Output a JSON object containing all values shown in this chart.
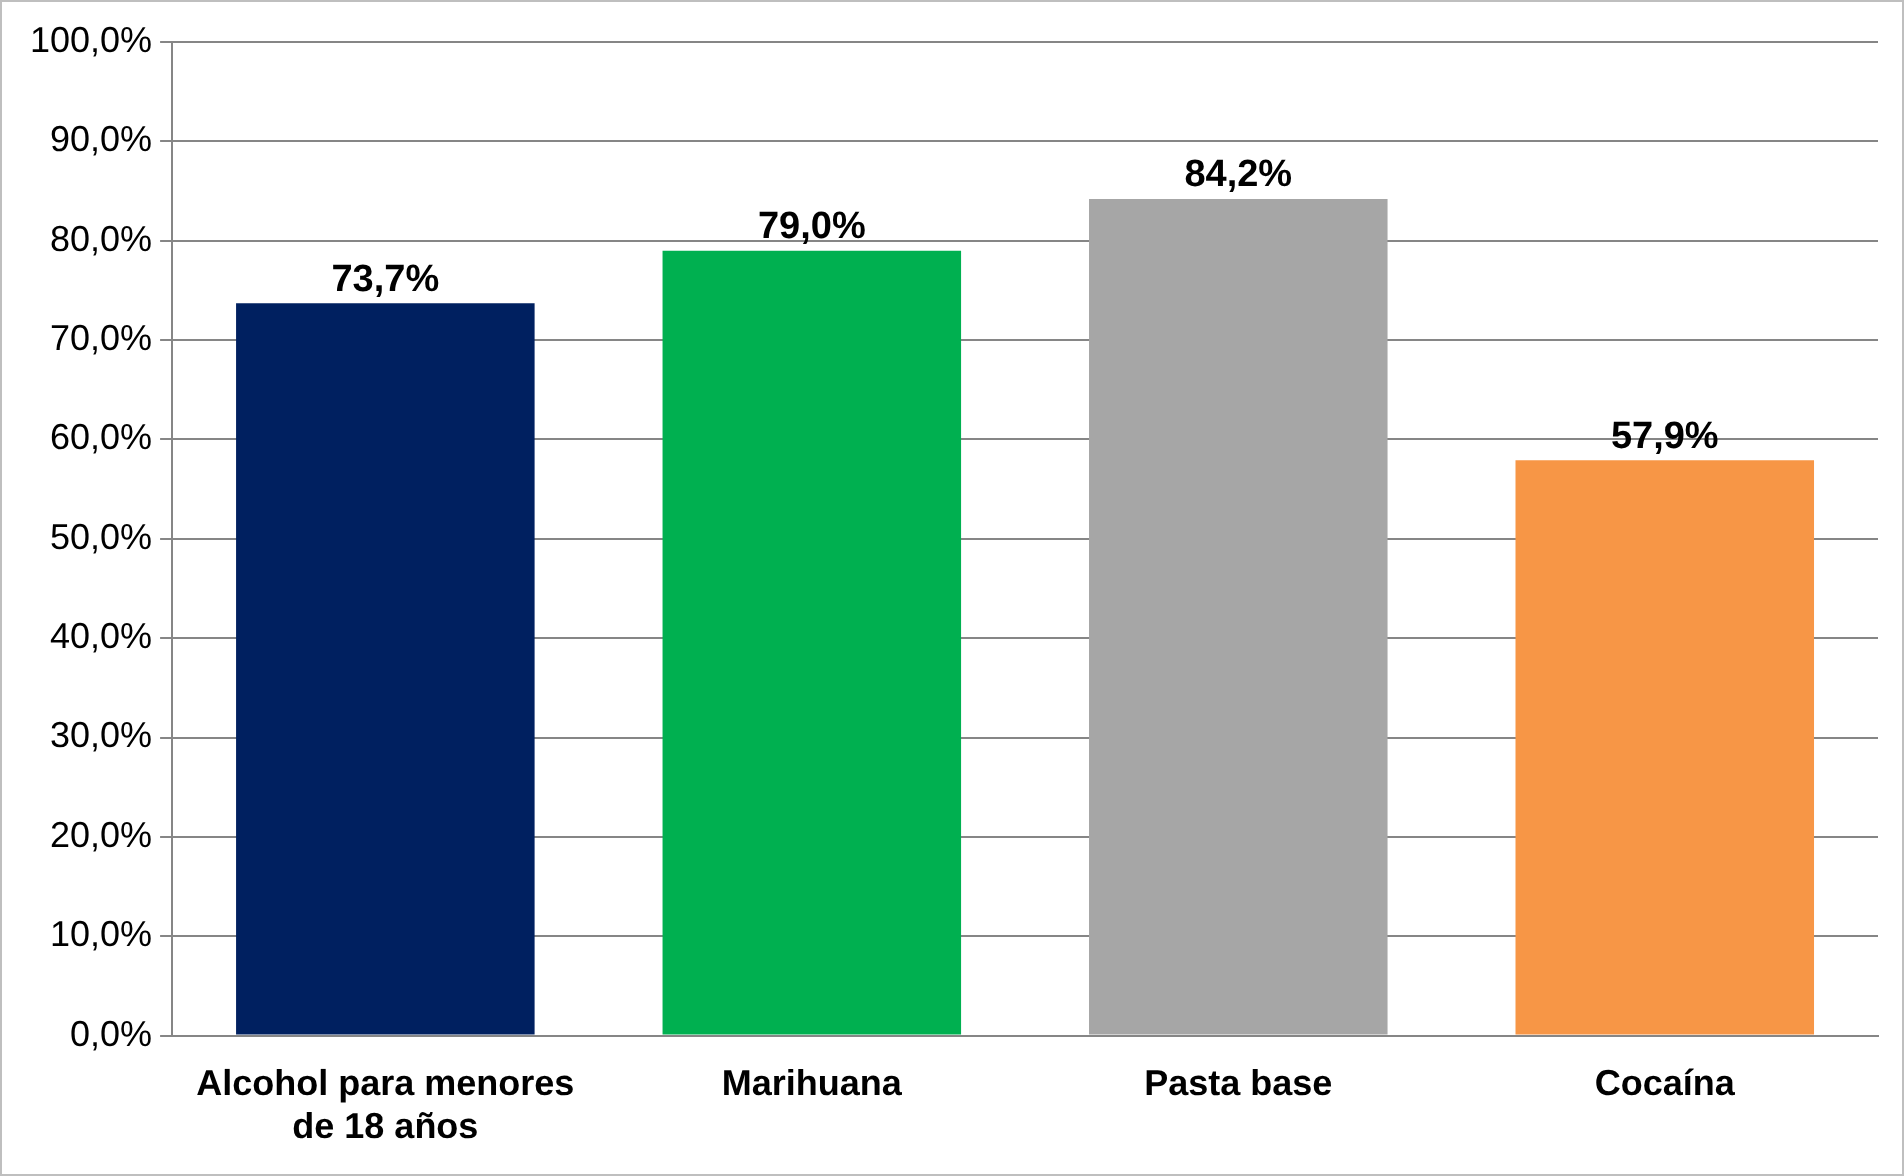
{
  "chart_data": {
    "type": "bar",
    "categories": [
      "Alcohol para menores de 18 años",
      "Marihuana",
      "Pasta base",
      "Cocaína"
    ],
    "values": [
      73.7,
      79.0,
      84.2,
      57.9
    ],
    "colors": [
      "#002060",
      "#00b050",
      "#a6a6a6",
      "#f79646"
    ],
    "value_labels": [
      "73,7%",
      "79,0%",
      "84,2%",
      "57,9%"
    ],
    "ylim": [
      0,
      100
    ],
    "yticks": [
      {
        "value": 0,
        "label": "0,0%"
      },
      {
        "value": 10,
        "label": "10,0%"
      },
      {
        "value": 20,
        "label": "20,0%"
      },
      {
        "value": 30,
        "label": "30,0%"
      },
      {
        "value": 40,
        "label": "40,0%"
      },
      {
        "value": 50,
        "label": "50,0%"
      },
      {
        "value": 60,
        "label": "60,0%"
      },
      {
        "value": 70,
        "label": "70,0%"
      },
      {
        "value": 80,
        "label": "80,0%"
      },
      {
        "value": 90,
        "label": "90,0%"
      },
      {
        "value": 100,
        "label": "100,0%"
      }
    ],
    "grid": "y",
    "legend": false
  }
}
